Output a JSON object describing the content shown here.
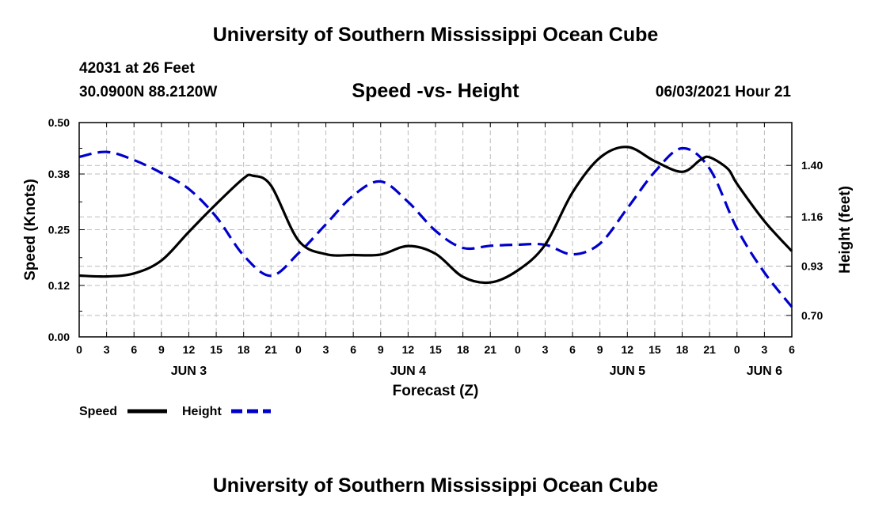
{
  "header": {
    "main_title": "University of Southern Mississippi Ocean Cube",
    "station": "42031 at 26 Feet",
    "coords": "30.0900N  88.2120W",
    "chart_title": "Speed -vs- Height",
    "date": "06/03/2021 Hour 21"
  },
  "footer": {
    "title": "University of Southern Mississippi Ocean Cube"
  },
  "chart_data": {
    "type": "line",
    "title": "Speed -vs- Height",
    "xlabel": "Forecast (Z)",
    "ylabel": "Speed (Knots)",
    "y2label": "Height (feet)",
    "x_range_hours": [
      0,
      78
    ],
    "x_tick_step": 3,
    "x_tick_labels": [
      "0",
      "3",
      "6",
      "9",
      "12",
      "15",
      "18",
      "21",
      "0",
      "3",
      "6",
      "9",
      "12",
      "15",
      "18",
      "21",
      "0",
      "3",
      "6",
      "9",
      "12",
      "15",
      "18",
      "21",
      "0",
      "3",
      "6"
    ],
    "day_labels": [
      {
        "label": "JUN 3",
        "hour": 12
      },
      {
        "label": "JUN 4",
        "hour": 36
      },
      {
        "label": "JUN 5",
        "hour": 60
      },
      {
        "label": "JUN 6",
        "hour": 75
      }
    ],
    "ylim": [
      0,
      0.5
    ],
    "y_ticks": [
      0.0,
      0.12,
      0.25,
      0.38,
      0.5
    ],
    "y_tick_labels": [
      "0.00",
      "0.12",
      "0.25",
      "0.38",
      "0.50"
    ],
    "y2lim": [
      0.6,
      1.6
    ],
    "y2_ticks": [
      0.7,
      0.93,
      1.16,
      1.4
    ],
    "y2_tick_labels": [
      "0.70",
      "0.93",
      "1.16",
      "1.40"
    ],
    "grid": true,
    "legend": "bottom-left",
    "series": [
      {
        "name": "Speed",
        "axis": "left",
        "color": "#000000",
        "style": "solid",
        "x": [
          0,
          3,
          6,
          9,
          12,
          15,
          18,
          19,
          21,
          24,
          27,
          30,
          33,
          36,
          39,
          42,
          45,
          48,
          51,
          54,
          57,
          60,
          63,
          66,
          68,
          69,
          71,
          72,
          75,
          78
        ],
        "values": [
          0.143,
          0.141,
          0.148,
          0.178,
          0.245,
          0.31,
          0.37,
          0.376,
          0.353,
          0.225,
          0.193,
          0.191,
          0.192,
          0.212,
          0.194,
          0.14,
          0.127,
          0.155,
          0.215,
          0.337,
          0.418,
          0.443,
          0.41,
          0.385,
          0.413,
          0.419,
          0.392,
          0.357,
          0.27,
          0.2
        ]
      },
      {
        "name": "Height",
        "axis": "right",
        "color": "#0000cc",
        "style": "dashed",
        "x": [
          0,
          3,
          6,
          9,
          12,
          15,
          18,
          21,
          24,
          27,
          30,
          33,
          36,
          39,
          42,
          45,
          48,
          51,
          54,
          57,
          60,
          63,
          66,
          69,
          72,
          75,
          78
        ],
        "values": [
          1.44,
          1.463,
          1.425,
          1.365,
          1.29,
          1.16,
          0.98,
          0.885,
          0.99,
          1.125,
          1.26,
          1.325,
          1.23,
          1.095,
          1.015,
          1.025,
          1.03,
          1.03,
          0.985,
          1.035,
          1.2,
          1.37,
          1.48,
          1.385,
          1.105,
          0.9,
          0.74
        ]
      }
    ]
  }
}
